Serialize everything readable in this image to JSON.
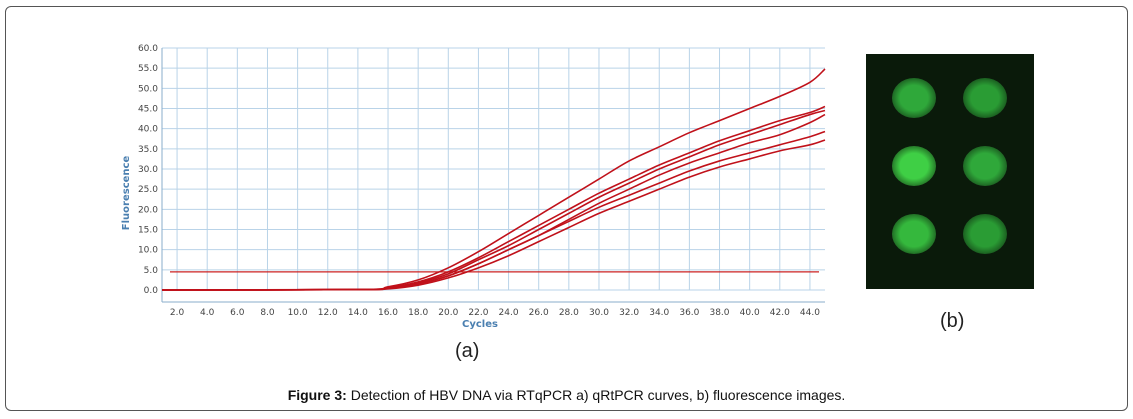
{
  "caption": {
    "label": "Figure 3:",
    "text": " Detection of HBV DNA via RTqPCR a) qRtPCR curves, b) fluorescence images."
  },
  "panels": {
    "a_label": "(a)",
    "b_label": "(b)"
  },
  "chart_data": {
    "type": "line",
    "title": "",
    "xlabel": "Cycles",
    "ylabel": "Fluorescence",
    "xlim": [
      1,
      45
    ],
    "ylim": [
      0,
      60
    ],
    "x_ticks": [
      "2.0",
      "4.0",
      "6.0",
      "8.0",
      "10.0",
      "12.0",
      "14.0",
      "16.0",
      "18.0",
      "20.0",
      "22.0",
      "24.0",
      "26.0",
      "28.0",
      "30.0",
      "32.0",
      "34.0",
      "36.0",
      "38.0",
      "40.0",
      "42.0",
      "44.0"
    ],
    "y_ticks": [
      "0.0",
      "5.0",
      "10.0",
      "15.0",
      "20.0",
      "25.0",
      "30.0",
      "35.0",
      "40.0",
      "45.0",
      "50.0",
      "55.0",
      "60.0"
    ],
    "grid": true,
    "threshold": 4.5,
    "colors": {
      "curve": "#c0111a",
      "threshold": "#cc2222",
      "grid": "#b9d3e8",
      "axis": "#8aaecb"
    },
    "x": [
      1,
      14,
      16,
      18,
      20,
      22,
      24,
      26,
      28,
      30,
      32,
      34,
      36,
      38,
      40,
      42,
      44,
      45
    ],
    "series": [
      {
        "values": [
          0,
          0.1,
          0.8,
          2.5,
          5.5,
          9.5,
          14,
          18.5,
          23,
          27.5,
          32,
          35.5,
          39,
          42,
          45,
          48,
          51.5,
          54.8
        ]
      },
      {
        "values": [
          0,
          0.1,
          0.6,
          2,
          4.5,
          8,
          12,
          16,
          20,
          24,
          27.5,
          31,
          34,
          37,
          39.5,
          42,
          44,
          45.5
        ]
      },
      {
        "values": [
          0,
          0.1,
          0.5,
          1.8,
          4,
          7.5,
          11,
          15,
          19,
          23,
          26.5,
          30,
          33,
          36,
          38.5,
          41,
          43.5,
          44.5
        ]
      },
      {
        "values": [
          0,
          0.1,
          0.4,
          1.5,
          3.5,
          6.5,
          10,
          13.5,
          17.5,
          21.5,
          25,
          28.5,
          31.5,
          34,
          36.5,
          38.5,
          41.5,
          43.5
        ]
      },
      {
        "values": [
          0,
          0.1,
          0.4,
          1.5,
          3.5,
          6.5,
          10,
          13.5,
          17,
          20.5,
          23.5,
          26.5,
          29.5,
          32,
          34,
          36,
          38,
          39.3
        ]
      },
      {
        "values": [
          0,
          0.1,
          0.3,
          1.2,
          3,
          5.5,
          8.5,
          12,
          15.5,
          19,
          22,
          25,
          28,
          30.5,
          32.5,
          34.5,
          36,
          37.2
        ]
      }
    ]
  },
  "fluorescence": {
    "background": "#0a1a0a",
    "spots": [
      {
        "color": "#2fa83a"
      },
      {
        "color": "#2a9c34"
      },
      {
        "color": "#3fcf45"
      },
      {
        "color": "#2fa83a"
      },
      {
        "color": "#35b83d"
      },
      {
        "color": "#2a9c34"
      }
    ]
  }
}
